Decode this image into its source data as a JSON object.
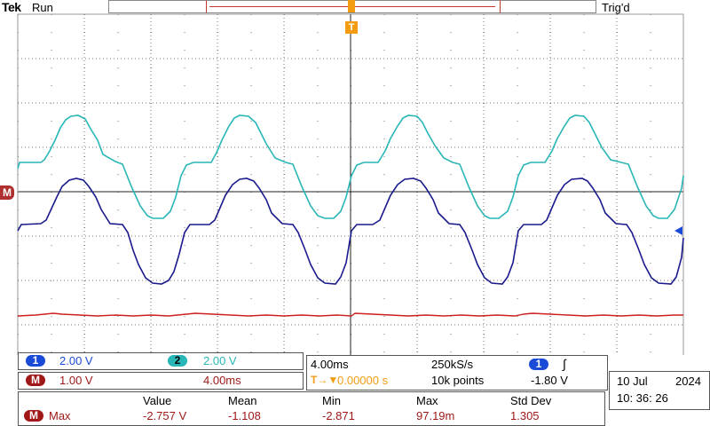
{
  "header": {
    "brand": "Tek",
    "run_state": "Run",
    "trigger_state": "Trig'd",
    "trigger_marker": "T"
  },
  "markers": {
    "math_marker": "M",
    "trigger_level_color": "#1a4ad8"
  },
  "colors": {
    "ch1": "#1a1a8c",
    "ch2": "#29b6b6",
    "math": "#cc1f1f",
    "trigger": "#f39c12",
    "grid": "#7f7f7f"
  },
  "channels": {
    "ch1": {
      "badge": "1",
      "scale": "2.00 V"
    },
    "ch2": {
      "badge": "2",
      "scale": "2.00 V"
    },
    "math": {
      "badge": "M",
      "scale": "1.00 V",
      "time": "4.00ms"
    }
  },
  "timebase": {
    "scale": "4.00ms",
    "sample_rate": "250kS/s",
    "trigger_source": "1",
    "slope_symbol": "∫",
    "trigger_delay_icon": "T→▼",
    "position": "0.00000 s",
    "record_length": "10k points",
    "trigger_level": "-1.80 V"
  },
  "datetime": {
    "day_month": "10 Jul",
    "year": "2024",
    "time": "10: 36: 26"
  },
  "measurements": {
    "headers": [
      "Value",
      "Mean",
      "Min",
      "Max",
      "Std Dev"
    ],
    "row": {
      "source": "M",
      "label": "Max",
      "value": "-2.757 V",
      "mean": "-1.108",
      "min": "-2.871",
      "max": "97.19m",
      "std_dev": "1.305"
    }
  }
}
